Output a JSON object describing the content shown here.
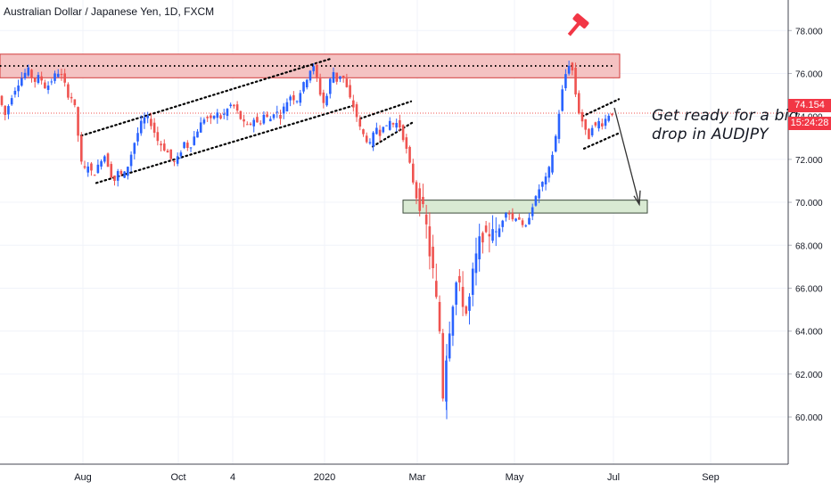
{
  "header": {
    "title": "Australian Dollar / Japanese Yen, 1D, FXCM"
  },
  "annotation": {
    "line1": "Get ready for a big",
    "line2": "drop in AUDJPY"
  },
  "price_badge": {
    "price": "74.154",
    "countdown": "15:24:28",
    "color": "#f23645"
  },
  "colors": {
    "up": "#2962ff",
    "down": "#ef5350",
    "grid": "#f0f3fa",
    "resistance_zone": "#f4c2c2",
    "support_zone": "#d9ead3",
    "text": "#131722"
  },
  "icons": {
    "marker": "gavel-icon"
  },
  "chart_data": {
    "type": "candlestick",
    "title": "Australian Dollar / Japanese Yen, 1D, FXCM",
    "y_ticks": [
      "78.000",
      "76.000",
      "74.000",
      "72.000",
      "70.000",
      "68.000",
      "66.000",
      "64.000",
      "62.000",
      "60.000"
    ],
    "x_ticks": [
      "Aug",
      "Oct",
      "4",
      "2020",
      "Mar",
      "May",
      "Jul",
      "Sep"
    ],
    "ylim": [
      58.3,
      78.8
    ],
    "last_price": 74.154,
    "grid": true,
    "series_path": [
      [
        0,
        75.2
      ],
      [
        5,
        74.6
      ],
      [
        10,
        74.0
      ],
      [
        15,
        74.8
      ],
      [
        22,
        75.4
      ],
      [
        28,
        75.8
      ],
      [
        35,
        76.2
      ],
      [
        42,
        75.6
      ],
      [
        48,
        75.9
      ],
      [
        55,
        75.3
      ],
      [
        62,
        75.7
      ],
      [
        68,
        76.1
      ],
      [
        74,
        75.8
      ],
      [
        80,
        75.0
      ],
      [
        86,
        74.8
      ],
      [
        90,
        73.8
      ],
      [
        93,
        72.2
      ],
      [
        97,
        71.4
      ],
      [
        102,
        71.8
      ],
      [
        108,
        71.2
      ],
      [
        114,
        71.7
      ],
      [
        120,
        72.3
      ],
      [
        126,
        71.6
      ],
      [
        131,
        70.9
      ],
      [
        136,
        71.4
      ],
      [
        142,
        71.2
      ],
      [
        148,
        71.8
      ],
      [
        153,
        72.6
      ],
      [
        158,
        73.2
      ],
      [
        163,
        73.8
      ],
      [
        168,
        74.0
      ],
      [
        174,
        73.6
      ],
      [
        180,
        72.9
      ],
      [
        186,
        72.6
      ],
      [
        192,
        72.3
      ],
      [
        198,
        71.8
      ],
      [
        204,
        72.1
      ],
      [
        210,
        72.8
      ],
      [
        216,
        72.5
      ],
      [
        222,
        73.1
      ],
      [
        228,
        73.6
      ],
      [
        234,
        74.0
      ],
      [
        240,
        73.8
      ],
      [
        246,
        74.2
      ],
      [
        252,
        73.9
      ],
      [
        258,
        74.3
      ],
      [
        264,
        74.6
      ],
      [
        270,
        74.2
      ],
      [
        276,
        73.7
      ],
      [
        282,
        73.5
      ],
      [
        288,
        73.9
      ],
      [
        294,
        73.6
      ],
      [
        300,
        74.1
      ],
      [
        306,
        73.8
      ],
      [
        312,
        74.3
      ],
      [
        318,
        74.0
      ],
      [
        324,
        74.6
      ],
      [
        330,
        75.0
      ],
      [
        336,
        74.7
      ],
      [
        342,
        75.3
      ],
      [
        348,
        75.8
      ],
      [
        354,
        76.4
      ],
      [
        358,
        76.0
      ],
      [
        362,
        75.2
      ],
      [
        366,
        74.6
      ],
      [
        370,
        74.9
      ],
      [
        374,
        75.7
      ],
      [
        378,
        76.1
      ],
      [
        382,
        75.6
      ],
      [
        386,
        76.0
      ],
      [
        390,
        75.7
      ],
      [
        394,
        75.1
      ],
      [
        398,
        74.6
      ],
      [
        402,
        74.3
      ],
      [
        406,
        73.6
      ],
      [
        410,
        73.2
      ],
      [
        414,
        73.0
      ],
      [
        418,
        72.6
      ],
      [
        422,
        73.1
      ],
      [
        426,
        73.5
      ],
      [
        430,
        73.2
      ],
      [
        434,
        73.7
      ],
      [
        438,
        73.4
      ],
      [
        442,
        73.9
      ],
      [
        446,
        73.5
      ],
      [
        450,
        73.8
      ],
      [
        454,
        73.3
      ],
      [
        458,
        72.7
      ],
      [
        462,
        72.0
      ],
      [
        466,
        71.2
      ],
      [
        470,
        70.3
      ],
      [
        474,
        70.0
      ],
      [
        478,
        69.6
      ],
      [
        482,
        68.8
      ],
      [
        486,
        67.5
      ],
      [
        490,
        66.6
      ],
      [
        494,
        65.0
      ],
      [
        498,
        63.6
      ],
      [
        501,
        60.5
      ],
      [
        504,
        62.8
      ],
      [
        508,
        64.2
      ],
      [
        512,
        65.5
      ],
      [
        516,
        66.4
      ],
      [
        520,
        65.8
      ],
      [
        524,
        65.2
      ],
      [
        528,
        64.6
      ],
      [
        532,
        66.2
      ],
      [
        536,
        67.1
      ],
      [
        540,
        67.9
      ],
      [
        544,
        68.6
      ],
      [
        548,
        68.2
      ],
      [
        552,
        68.5
      ],
      [
        556,
        69.0
      ],
      [
        560,
        68.4
      ],
      [
        564,
        68.8
      ],
      [
        568,
        69.3
      ],
      [
        572,
        69.7
      ],
      [
        576,
        69.4
      ],
      [
        580,
        69.1
      ],
      [
        584,
        69.5
      ],
      [
        588,
        69.0
      ],
      [
        592,
        68.6
      ],
      [
        596,
        69.2
      ],
      [
        600,
        69.8
      ],
      [
        604,
        70.1
      ],
      [
        608,
        70.6
      ],
      [
        612,
        70.9
      ],
      [
        616,
        71.1
      ],
      [
        620,
        71.6
      ],
      [
        624,
        72.4
      ],
      [
        628,
        73.3
      ],
      [
        632,
        74.6
      ],
      [
        636,
        75.6
      ],
      [
        640,
        76.3
      ],
      [
        644,
        76.6
      ],
      [
        648,
        75.4
      ],
      [
        652,
        74.3
      ],
      [
        656,
        73.9
      ],
      [
        660,
        73.3
      ],
      [
        664,
        73.0
      ],
      [
        668,
        73.6
      ],
      [
        672,
        73.5
      ],
      [
        676,
        73.8
      ],
      [
        680,
        73.6
      ],
      [
        684,
        74.0
      ],
      [
        688,
        74.154
      ]
    ]
  }
}
